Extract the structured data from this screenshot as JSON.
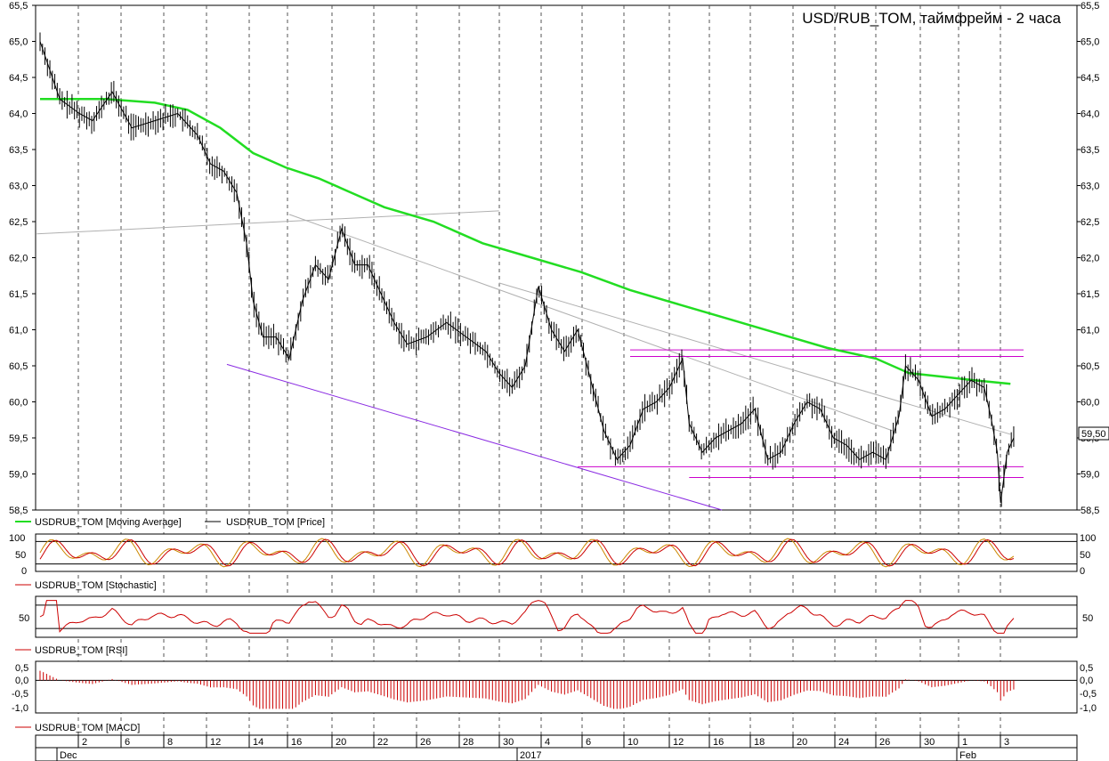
{
  "chart_data": {
    "type": "line",
    "title": "USD/RUB_TOM, таймфрейм - 2 часа",
    "price_axis": {
      "ylim": [
        58.5,
        65.5
      ],
      "ticks": [
        "65,5",
        "65,0",
        "64,5",
        "64,0",
        "63,5",
        "63,0",
        "62,5",
        "62,0",
        "61,5",
        "61,0",
        "60,5",
        "60,0",
        "59,5",
        "59,0",
        "58,5"
      ],
      "last_price_label": "59,50",
      "last_price": 59.5
    },
    "legend": {
      "ma": "USDRUB_TOM [Moving Average]",
      "price": "USDRUB_TOM [Price]",
      "stochastic": "USDRUB_TOM [Stochastic]",
      "rsi": "USDRUB_TOM [RSI]",
      "macd": "USDRUB_TOM [MACD]"
    },
    "colors": {
      "ma": "#22dd22",
      "price": "#000000",
      "stoch_k": "#cc8800",
      "stoch_d": "#cc0000",
      "rsi": "#cc0000",
      "macd": "#cc0000",
      "trend_purple": "#8a2be2",
      "level_magenta": "#cc00cc",
      "trend_gray": "#b0b0b0",
      "grid": "#555555"
    },
    "x_axis": {
      "day_labels": [
        "2",
        "6",
        "8",
        "12",
        "14",
        "16",
        "20",
        "22",
        "26",
        "28",
        "30",
        "4",
        "6",
        "10",
        "12",
        "16",
        "18",
        "20",
        "24",
        "26",
        "30",
        "1",
        "3"
      ],
      "month_labels": [
        "Dec",
        "2017",
        "Feb"
      ]
    },
    "price_series": [
      {
        "x": 0,
        "y": 65.0
      },
      {
        "x": 6,
        "y": 64.2
      },
      {
        "x": 12,
        "y": 64.0
      },
      {
        "x": 16,
        "y": 63.9
      },
      {
        "x": 22,
        "y": 64.3
      },
      {
        "x": 28,
        "y": 63.8
      },
      {
        "x": 35,
        "y": 63.9
      },
      {
        "x": 42,
        "y": 64.0
      },
      {
        "x": 48,
        "y": 63.7
      },
      {
        "x": 52,
        "y": 63.3
      },
      {
        "x": 56,
        "y": 63.2
      },
      {
        "x": 60,
        "y": 62.9
      },
      {
        "x": 63,
        "y": 62.2
      },
      {
        "x": 65,
        "y": 61.4
      },
      {
        "x": 68,
        "y": 60.9
      },
      {
        "x": 72,
        "y": 60.9
      },
      {
        "x": 76,
        "y": 60.6
      },
      {
        "x": 80,
        "y": 61.4
      },
      {
        "x": 84,
        "y": 61.9
      },
      {
        "x": 88,
        "y": 61.7
      },
      {
        "x": 92,
        "y": 62.4
      },
      {
        "x": 96,
        "y": 61.9
      },
      {
        "x": 100,
        "y": 61.9
      },
      {
        "x": 104,
        "y": 61.5
      },
      {
        "x": 108,
        "y": 61.1
      },
      {
        "x": 112,
        "y": 60.8
      },
      {
        "x": 118,
        "y": 60.9
      },
      {
        "x": 124,
        "y": 61.1
      },
      {
        "x": 130,
        "y": 60.9
      },
      {
        "x": 136,
        "y": 60.7
      },
      {
        "x": 140,
        "y": 60.4
      },
      {
        "x": 144,
        "y": 60.2
      },
      {
        "x": 148,
        "y": 60.5
      },
      {
        "x": 152,
        "y": 61.6
      },
      {
        "x": 156,
        "y": 61.0
      },
      {
        "x": 160,
        "y": 60.7
      },
      {
        "x": 164,
        "y": 61.0
      },
      {
        "x": 168,
        "y": 60.3
      },
      {
        "x": 172,
        "y": 59.6
      },
      {
        "x": 176,
        "y": 59.2
      },
      {
        "x": 180,
        "y": 59.4
      },
      {
        "x": 184,
        "y": 59.9
      },
      {
        "x": 188,
        "y": 60.0
      },
      {
        "x": 192,
        "y": 60.2
      },
      {
        "x": 196,
        "y": 60.6
      },
      {
        "x": 198,
        "y": 59.7
      },
      {
        "x": 202,
        "y": 59.3
      },
      {
        "x": 206,
        "y": 59.5
      },
      {
        "x": 210,
        "y": 59.6
      },
      {
        "x": 214,
        "y": 59.7
      },
      {
        "x": 218,
        "y": 59.9
      },
      {
        "x": 222,
        "y": 59.2
      },
      {
        "x": 226,
        "y": 59.3
      },
      {
        "x": 230,
        "y": 59.7
      },
      {
        "x": 234,
        "y": 60.0
      },
      {
        "x": 238,
        "y": 59.9
      },
      {
        "x": 242,
        "y": 59.5
      },
      {
        "x": 246,
        "y": 59.4
      },
      {
        "x": 250,
        "y": 59.2
      },
      {
        "x": 254,
        "y": 59.3
      },
      {
        "x": 258,
        "y": 59.2
      },
      {
        "x": 262,
        "y": 59.8
      },
      {
        "x": 264,
        "y": 60.5
      },
      {
        "x": 268,
        "y": 60.3
      },
      {
        "x": 272,
        "y": 59.8
      },
      {
        "x": 276,
        "y": 59.9
      },
      {
        "x": 280,
        "y": 60.1
      },
      {
        "x": 284,
        "y": 60.3
      },
      {
        "x": 288,
        "y": 60.2
      },
      {
        "x": 290,
        "y": 59.8
      },
      {
        "x": 292,
        "y": 59.3
      },
      {
        "x": 293,
        "y": 58.6
      },
      {
        "x": 295,
        "y": 59.3
      },
      {
        "x": 297,
        "y": 59.5
      }
    ],
    "ma_series": [
      {
        "x": 0,
        "y": 64.2
      },
      {
        "x": 20,
        "y": 64.2
      },
      {
        "x": 35,
        "y": 64.15
      },
      {
        "x": 45,
        "y": 64.05
      },
      {
        "x": 55,
        "y": 63.8
      },
      {
        "x": 65,
        "y": 63.45
      },
      {
        "x": 75,
        "y": 63.25
      },
      {
        "x": 85,
        "y": 63.1
      },
      {
        "x": 95,
        "y": 62.9
      },
      {
        "x": 105,
        "y": 62.7
      },
      {
        "x": 120,
        "y": 62.5
      },
      {
        "x": 135,
        "y": 62.2
      },
      {
        "x": 150,
        "y": 62.0
      },
      {
        "x": 165,
        "y": 61.8
      },
      {
        "x": 180,
        "y": 61.55
      },
      {
        "x": 195,
        "y": 61.35
      },
      {
        "x": 210,
        "y": 61.15
      },
      {
        "x": 225,
        "y": 60.95
      },
      {
        "x": 240,
        "y": 60.75
      },
      {
        "x": 255,
        "y": 60.6
      },
      {
        "x": 265,
        "y": 60.4
      },
      {
        "x": 275,
        "y": 60.35
      },
      {
        "x": 285,
        "y": 60.3
      },
      {
        "x": 296,
        "y": 60.25
      }
    ],
    "x_max": 300
  }
}
